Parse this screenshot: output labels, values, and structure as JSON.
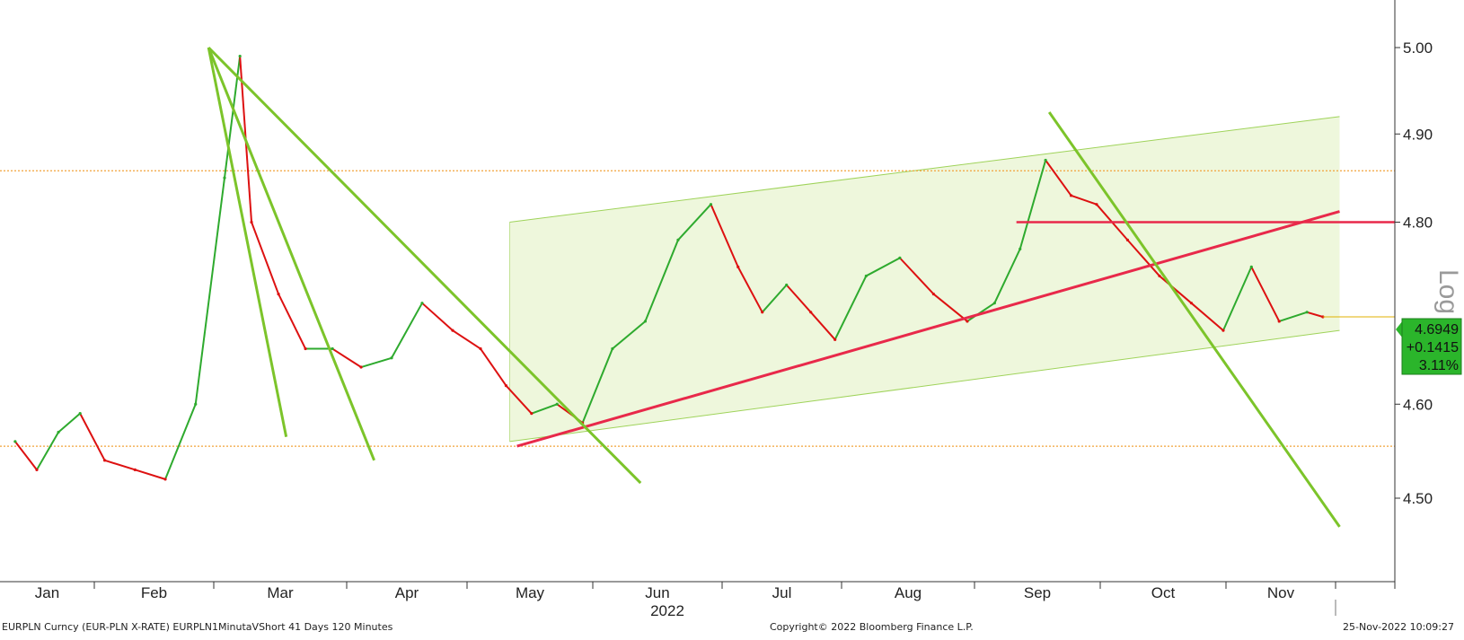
{
  "chart_data": {
    "type": "line",
    "title": "",
    "xlabel": "2022",
    "ylabel": "",
    "scale_label": "Log",
    "y_scale": "log",
    "ylim": [
      4.45,
      5.05
    ],
    "y_ticks": [
      "5.00",
      "4.90",
      "4.80",
      "4.60",
      "4.50"
    ],
    "x_ticks": [
      "Jan",
      "Feb",
      "Mar",
      "Apr",
      "May",
      "Jun",
      "Jul",
      "Aug",
      "Sep",
      "Oct",
      "Nov"
    ],
    "grid": false,
    "legend": "none",
    "colors": {
      "up": "#2eaa2e",
      "down": "#dd1111",
      "support_line": "#e8294a",
      "downtrend_line": "#7cc42a",
      "channel_fill": "#eef7dc",
      "channel_border": "#9fd35a",
      "level_line": "#f2a33a",
      "current_badge": "#2bb52b"
    },
    "series": [
      {
        "name": "EURPLN",
        "x": [
          "2022-01-03",
          "2022-01-10",
          "2022-01-17",
          "2022-01-24",
          "2022-01-31",
          "2022-02-07",
          "2022-02-14",
          "2022-02-21",
          "2022-02-28",
          "2022-03-04",
          "2022-03-07",
          "2022-03-14",
          "2022-03-21",
          "2022-03-28",
          "2022-04-04",
          "2022-04-11",
          "2022-04-18",
          "2022-04-25",
          "2022-05-02",
          "2022-05-09",
          "2022-05-16",
          "2022-05-23",
          "2022-05-30",
          "2022-06-06",
          "2022-06-13",
          "2022-06-20",
          "2022-06-27",
          "2022-07-04",
          "2022-07-11",
          "2022-07-18",
          "2022-07-25",
          "2022-08-01",
          "2022-08-08",
          "2022-08-15",
          "2022-08-22",
          "2022-08-29",
          "2022-09-05",
          "2022-09-12",
          "2022-09-19",
          "2022-09-26",
          "2022-10-03",
          "2022-10-10",
          "2022-10-17",
          "2022-10-24",
          "2022-10-31",
          "2022-11-07",
          "2022-11-14",
          "2022-11-21",
          "2022-11-25"
        ],
        "y": [
          4.56,
          4.53,
          4.57,
          4.59,
          4.54,
          4.53,
          4.52,
          4.6,
          4.85,
          4.99,
          4.8,
          4.72,
          4.66,
          4.66,
          4.64,
          4.65,
          4.71,
          4.68,
          4.66,
          4.62,
          4.59,
          4.6,
          4.58,
          4.66,
          4.69,
          4.78,
          4.82,
          4.75,
          4.7,
          4.73,
          4.7,
          4.67,
          4.74,
          4.76,
          4.72,
          4.69,
          4.71,
          4.77,
          4.87,
          4.83,
          4.82,
          4.78,
          4.74,
          4.71,
          4.68,
          4.75,
          4.69,
          4.7,
          4.6949
        ]
      }
    ],
    "last_value": "4.6949",
    "change": "+0.1415",
    "change_pct": "3.11%",
    "annotations": {
      "horizontal_levels": [
        4.858,
        4.555
      ],
      "resistance_level": 4.8,
      "channel": {
        "from": "2022-05-10",
        "to": "2022-11-30",
        "upper": [
          4.8,
          4.92
        ],
        "lower": [
          4.56,
          4.68
        ]
      },
      "support_trendline": {
        "from": [
          "2022-05-12",
          4.555
        ],
        "to": [
          "2022-11-30",
          4.812
        ]
      },
      "downtrend_lines": [
        {
          "from": [
            "2022-02-24",
            5.0
          ],
          "to": [
            "2022-03-16",
            4.565
          ]
        },
        {
          "from": [
            "2022-02-24",
            5.0
          ],
          "to": [
            "2022-04-07",
            4.54
          ]
        },
        {
          "from": [
            "2022-02-24",
            5.0
          ],
          "to": [
            "2022-06-12",
            4.516
          ]
        },
        {
          "from": [
            "2022-09-20",
            4.925
          ],
          "to": [
            "2022-11-30",
            4.47
          ]
        }
      ]
    }
  },
  "footer": {
    "left": "EURPLN Curncy (EUR-PLN X-RATE) EURPLN1MinutaVShort 41 Days 120 Minutes",
    "center": "Copyright© 2022 Bloomberg Finance L.P.",
    "right": "25-Nov-2022 10:09:27"
  }
}
